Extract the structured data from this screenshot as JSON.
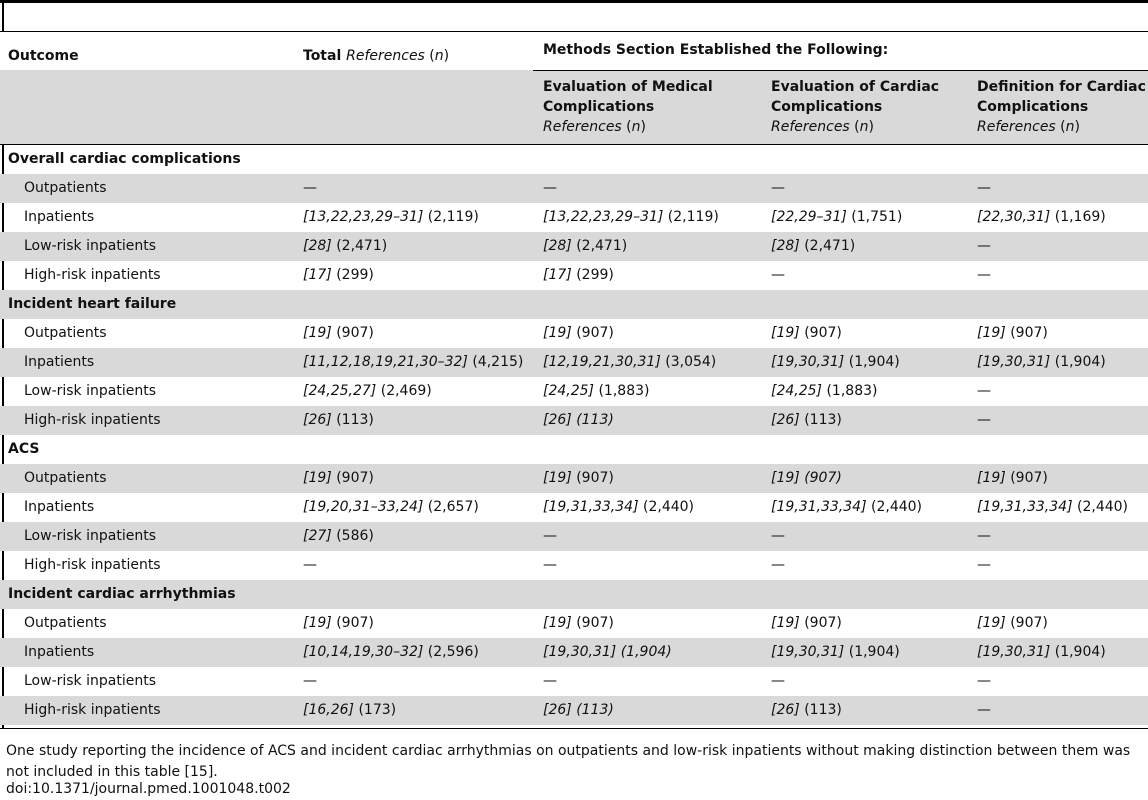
{
  "header": {
    "outcome": "Outcome",
    "total_prefix": "Total ",
    "total_italic": "References",
    "total_n_open": " (",
    "total_n": "n",
    "total_n_close": ")",
    "methods": "Methods Section Established the Following:",
    "sub": [
      {
        "line1": "Evaluation of Medical",
        "line2": "Complications"
      },
      {
        "line1": "Evaluation of Cardiac",
        "line2": "Complications"
      },
      {
        "line1": "Definition for Cardiac",
        "line2": "Complications"
      }
    ],
    "refs_italic": "References",
    "n_italic": "n"
  },
  "sections": [
    {
      "title": "Overall cardiac complications",
      "rows": [
        {
          "label": "Outpatients",
          "cells": [
            [
              "",
              "—"
            ],
            [
              "",
              "—"
            ],
            [
              "",
              "—"
            ],
            [
              "",
              "—"
            ]
          ]
        },
        {
          "label": "Inpatients",
          "cells": [
            [
              "[13,22,23,29–31]",
              " (2,119)"
            ],
            [
              "[13,22,23,29–31]",
              " (2,119)"
            ],
            [
              "[22,29–31]",
              " (1,751)"
            ],
            [
              "[22,30,31]",
              " (1,169)"
            ]
          ]
        },
        {
          "label": "Low-risk inpatients",
          "cells": [
            [
              "[28]",
              " (2,471)"
            ],
            [
              "[28]",
              " (2,471)"
            ],
            [
              "[28]",
              " (2,471)"
            ],
            [
              "",
              "—"
            ]
          ]
        },
        {
          "label": "High-risk inpatients",
          "cells": [
            [
              "[17]",
              " (299)"
            ],
            [
              "[17]",
              " (299)"
            ],
            [
              "",
              "—"
            ],
            [
              "",
              "—"
            ]
          ]
        }
      ]
    },
    {
      "title": "Incident heart failure",
      "rows": [
        {
          "label": "Outpatients",
          "cells": [
            [
              "[19]",
              " (907)"
            ],
            [
              "[19]",
              " (907)"
            ],
            [
              "[19]",
              " (907)"
            ],
            [
              "[19]",
              " (907)"
            ]
          ]
        },
        {
          "label": "Inpatients",
          "cells": [
            [
              "[11,12,18,19,21,30–32]",
              " (4,215)"
            ],
            [
              "[12,19,21,30,31]",
              " (3,054)"
            ],
            [
              "[19,30,31]",
              " (1,904)"
            ],
            [
              "[19,30,31]",
              " (1,904)"
            ]
          ]
        },
        {
          "label": "Low-risk inpatients",
          "cells": [
            [
              "[24,25,27]",
              " (2,469)"
            ],
            [
              "[24,25]",
              " (1,883)"
            ],
            [
              "[24,25]",
              " (1,883)"
            ],
            [
              "",
              "—"
            ]
          ]
        },
        {
          "label": "High-risk inpatients",
          "cells": [
            [
              "[26]",
              " (113)"
            ],
            [
              "[26] (113)",
              ""
            ],
            [
              "[26]",
              " (113)"
            ],
            [
              "",
              "—"
            ]
          ]
        }
      ]
    },
    {
      "title": "ACS",
      "rows": [
        {
          "label": "Outpatients",
          "cells": [
            [
              "[19]",
              " (907)"
            ],
            [
              "[19]",
              " (907)"
            ],
            [
              "[19] (907)",
              ""
            ],
            [
              "[19]",
              " (907)"
            ]
          ]
        },
        {
          "label": "Inpatients",
          "cells": [
            [
              "[19,20,31–33,24]",
              " (2,657)"
            ],
            [
              "[19,31,33,34]",
              " (2,440)"
            ],
            [
              "[19,31,33,34]",
              " (2,440)"
            ],
            [
              "[19,31,33,34]",
              " (2,440)"
            ]
          ]
        },
        {
          "label": "Low-risk inpatients",
          "cells": [
            [
              "[27]",
              " (586)"
            ],
            [
              "",
              "—"
            ],
            [
              "",
              "—"
            ],
            [
              "",
              "—"
            ]
          ]
        },
        {
          "label": "High-risk inpatients",
          "cells": [
            [
              "",
              "—"
            ],
            [
              "",
              "—"
            ],
            [
              "",
              "—"
            ],
            [
              "",
              "—"
            ]
          ]
        }
      ]
    },
    {
      "title": "Incident cardiac arrhythmias",
      "rows": [
        {
          "label": "Outpatients",
          "cells": [
            [
              "[19]",
              " (907)"
            ],
            [
              "[19]",
              " (907)"
            ],
            [
              "[19]",
              " (907)"
            ],
            [
              "[19]",
              " (907)"
            ]
          ]
        },
        {
          "label": "Inpatients",
          "cells": [
            [
              "[10,14,19,30–32]",
              " (2,596)"
            ],
            [
              "[19,30,31] (1,904)",
              ""
            ],
            [
              "[19,30,31]",
              " (1,904)"
            ],
            [
              "[19,30,31]",
              " (1,904)"
            ]
          ]
        },
        {
          "label": "Low-risk inpatients",
          "cells": [
            [
              "",
              "—"
            ],
            [
              "",
              "—"
            ],
            [
              "",
              "—"
            ],
            [
              "",
              "—"
            ]
          ]
        },
        {
          "label": "High-risk inpatients",
          "cells": [
            [
              "[16,26]",
              " (173)"
            ],
            [
              "[26] (113)",
              ""
            ],
            [
              "[26]",
              " (113)"
            ],
            [
              "",
              "—"
            ]
          ]
        }
      ]
    }
  ],
  "footnote": "One study reporting the incidence of ACS and incident cardiac arrhythmias on outpatients and low-risk inpatients without making distinction between them was not included in this table [15].",
  "doi": "doi:10.1371/journal.pmed.1001048.t002"
}
